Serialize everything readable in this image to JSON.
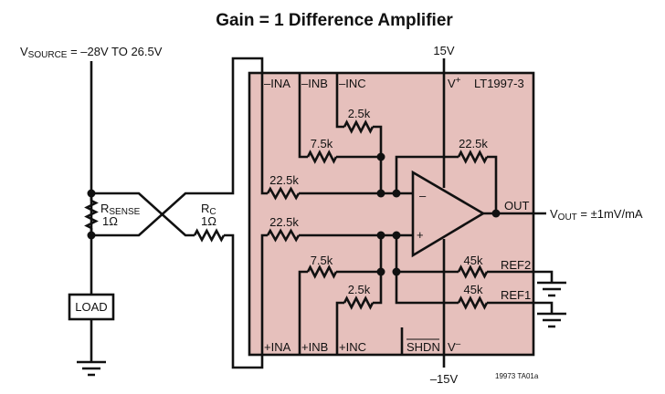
{
  "title": "Gain = 1 Difference Amplifier",
  "source": {
    "v": "V",
    "sub": "SOURCE",
    "rest": " = –28V TO 26.5V"
  },
  "rsense": {
    "r": "R",
    "sub": "SENSE",
    "value": "1Ω"
  },
  "rc": {
    "r": "R",
    "sub": "C",
    "value": "1Ω"
  },
  "load": "LOAD",
  "chip": {
    "name": "LT1997-3",
    "fill": "#e6c0bc",
    "pins": {
      "ina_neg": "–INA",
      "inb_neg": "–INB",
      "inc_neg": "–INC",
      "ina_pos": "+INA",
      "inb_pos": "+INB",
      "inc_pos": "+INC",
      "vplus": "V",
      "vplus_sup": "+",
      "vminus": "V",
      "vminus_sup": "–",
      "shdn": "SHDN",
      "out": "OUT",
      "ref1": "REF1",
      "ref2": "REF2"
    },
    "resistors": {
      "r_inc_neg": "2.5k",
      "r_inb_neg": "7.5k",
      "r_ina_neg": "22.5k",
      "r_ina_pos": "22.5k",
      "r_inb_pos": "7.5k",
      "r_inc_pos": "2.5k",
      "r_feedback": "22.5k",
      "r_ref2": "45k",
      "r_ref1": "45k"
    },
    "opamp": {
      "minus": "–",
      "plus": "+"
    }
  },
  "supply_pos": "15V",
  "supply_neg": "–15V",
  "vout": {
    "v": "V",
    "sub": "OUT",
    "rest": " = ±1mV/mA"
  },
  "figure_id": "19973 TA01a"
}
